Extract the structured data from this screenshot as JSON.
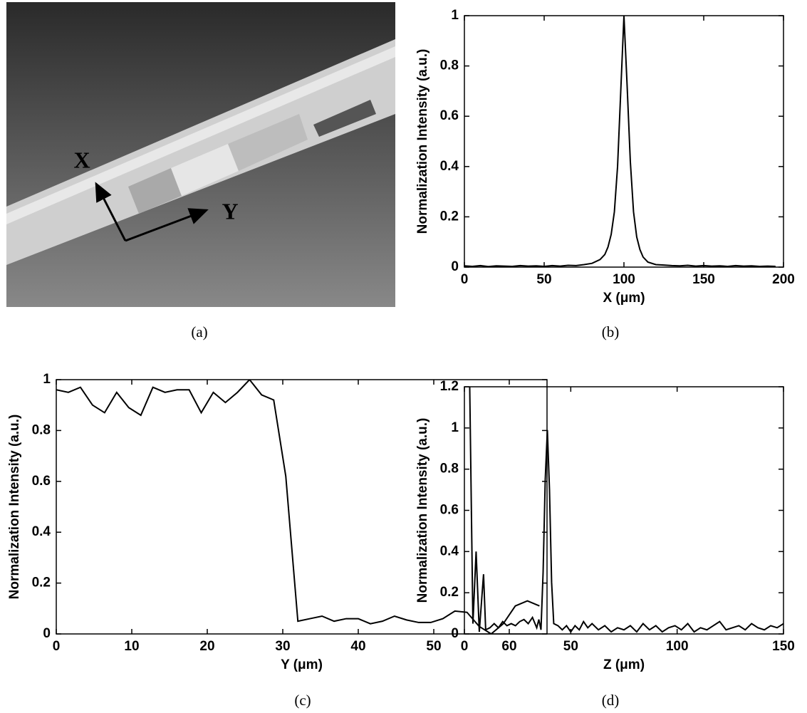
{
  "chart_data": [
    {
      "type": "image",
      "caption": "(a)",
      "labels": [
        "X",
        "Y"
      ]
    },
    {
      "type": "line",
      "caption": "(b)",
      "xlabel": "X (μm)",
      "ylabel": "Normalization Intensity (a.u.)",
      "color": "#000000",
      "x": [
        0,
        5,
        10,
        15,
        20,
        25,
        30,
        35,
        40,
        45,
        50,
        55,
        60,
        65,
        70,
        75,
        80,
        85,
        88,
        90,
        92,
        94,
        96,
        98,
        100,
        102,
        104,
        106,
        108,
        110,
        112,
        115,
        120,
        125,
        130,
        135,
        140,
        145,
        150,
        155,
        160,
        165,
        170,
        175,
        180,
        185,
        190,
        195
      ],
      "values": [
        0.005,
        0.003,
        0.006,
        0.002,
        0.005,
        0.004,
        0.003,
        0.006,
        0.004,
        0.005,
        0.003,
        0.006,
        0.004,
        0.007,
        0.006,
        0.01,
        0.015,
        0.03,
        0.05,
        0.08,
        0.13,
        0.22,
        0.4,
        0.7,
        1,
        0.72,
        0.42,
        0.22,
        0.12,
        0.07,
        0.04,
        0.02,
        0.01,
        0.008,
        0.006,
        0.005,
        0.007,
        0.004,
        0.006,
        0.004,
        0.005,
        0.003,
        0.006,
        0.004,
        0.005,
        0.003,
        0.004,
        0.003
      ],
      "xlim": [
        0,
        200
      ],
      "ylim": [
        0,
        1
      ],
      "xticks": [
        0,
        50,
        100,
        150,
        200
      ],
      "yticks": [
        0,
        0.2,
        0.4,
        0.6,
        0.8,
        1
      ]
    },
    {
      "type": "line",
      "caption": "(c)",
      "xlabel": "Y (μm)",
      "ylabel": "Normalization Intensity (a.u.)",
      "color": "#000000",
      "x": [
        0,
        1.6,
        3.2,
        4.8,
        6.4,
        8,
        9.6,
        11.2,
        12.8,
        14.4,
        16,
        17.6,
        19.2,
        20.8,
        22.4,
        24,
        25.6,
        27.2,
        28.8,
        30.4,
        32,
        33.6,
        35.2,
        36.8,
        38.4,
        40,
        41.6,
        43.2,
        44.8,
        46.4,
        48,
        49.6,
        51.2,
        52.8,
        54.4,
        56,
        57.6,
        59.2,
        60.8,
        62.4,
        64
      ],
      "values": [
        0.96,
        0.95,
        0.97,
        0.9,
        0.87,
        0.95,
        0.89,
        0.86,
        0.97,
        0.95,
        0.96,
        0.96,
        0.87,
        0.95,
        0.91,
        0.95,
        1,
        0.94,
        0.92,
        0.62,
        0.05,
        0.06,
        0.07,
        0.05,
        0.06,
        0.06,
        0.04,
        0.05,
        0.07,
        0.055,
        0.045,
        0.045,
        0.06,
        0.09,
        0.085,
        0.03,
        0,
        0.04,
        0.11,
        0.13,
        0.11
      ],
      "xlim": [
        0,
        65
      ],
      "ylim": [
        0,
        1
      ],
      "xticks": [
        0,
        10,
        20,
        30,
        40,
        50,
        60
      ],
      "yticks": [
        0,
        0.2,
        0.4,
        0.6,
        0.8,
        1
      ]
    },
    {
      "type": "line",
      "caption": "(d)",
      "xlabel": "Z (μm)",
      "ylabel": "Normalization Intensity (a.u.)",
      "color": "#000000",
      "x": [
        2.5,
        4,
        5.5,
        7,
        9,
        10,
        12,
        14,
        16,
        18,
        20,
        22,
        24,
        26,
        28,
        30,
        32,
        34,
        35,
        36,
        37,
        38,
        39,
        40,
        41,
        42,
        44,
        46,
        48,
        50,
        52,
        54,
        56,
        58,
        60,
        63,
        66,
        69,
        72,
        75,
        78,
        81,
        84,
        87,
        90,
        93,
        96,
        99,
        102,
        105,
        108,
        111,
        114,
        117,
        120,
        123,
        126,
        129,
        132,
        135,
        138,
        141,
        144,
        147,
        150
      ],
      "values": [
        1.2,
        0.05,
        0.4,
        0.01,
        0.29,
        0.02,
        0.03,
        0.05,
        0.03,
        0.06,
        0.04,
        0.05,
        0.04,
        0.06,
        0.07,
        0.05,
        0.08,
        0.03,
        0.07,
        0.02,
        0.3,
        0.75,
        0.99,
        0.7,
        0.25,
        0.05,
        0.04,
        0.02,
        0.04,
        0.01,
        0.04,
        0.02,
        0.06,
        0.03,
        0.05,
        0.02,
        0.04,
        0.01,
        0.03,
        0.02,
        0.04,
        0.01,
        0.05,
        0.02,
        0.04,
        0.01,
        0.03,
        0.04,
        0.02,
        0.05,
        0.01,
        0.03,
        0.02,
        0.04,
        0.06,
        0.02,
        0.03,
        0.04,
        0.02,
        0.05,
        0.03,
        0.02,
        0.04,
        0.03,
        0.05
      ],
      "xlim": [
        0,
        150
      ],
      "ylim": [
        0,
        1.2
      ],
      "xticks": [
        0,
        50,
        100,
        150
      ],
      "yticks": [
        0,
        0.2,
        0.4,
        0.6,
        0.8,
        1,
        1.2
      ]
    }
  ]
}
